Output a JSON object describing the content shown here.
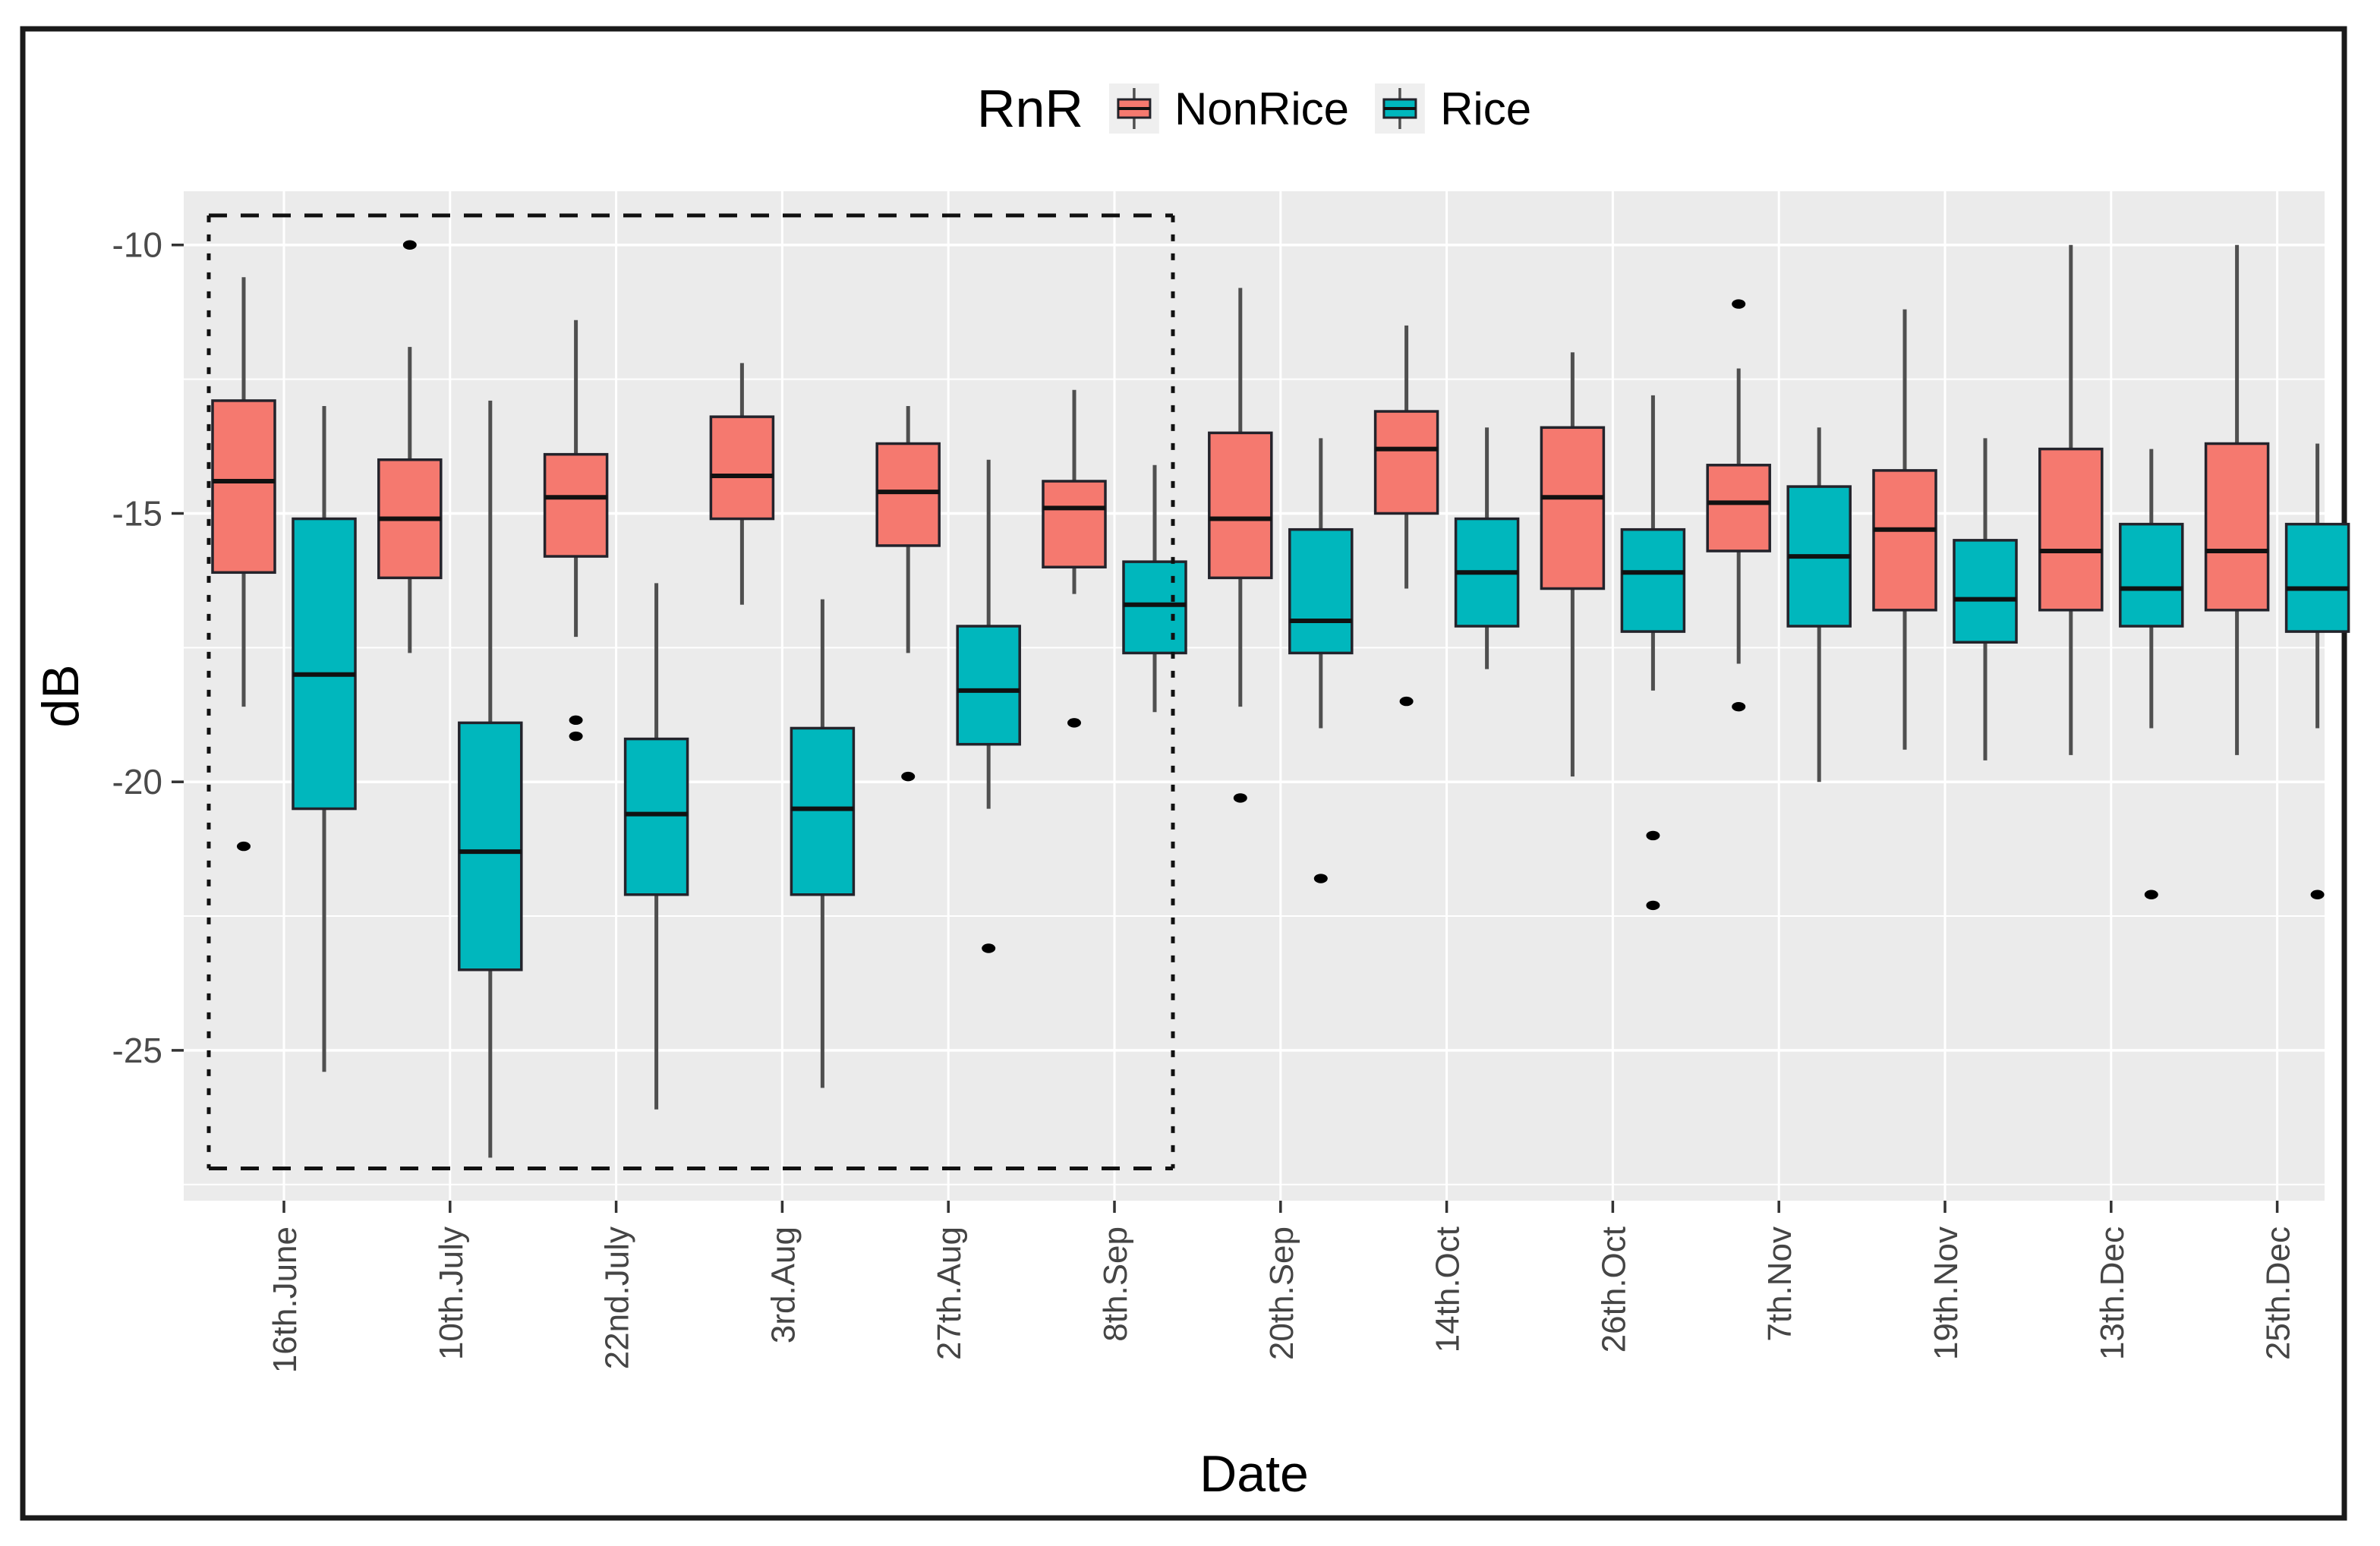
{
  "legend": {
    "title": "RnR",
    "entries": [
      {
        "label": "NonRice",
        "color": "#F5796F"
      },
      {
        "label": "Rice",
        "color": "#00B7BD"
      }
    ]
  },
  "chart_data": {
    "type": "boxplot",
    "title": "",
    "xlabel": "Date",
    "ylabel": "dB",
    "categories": [
      "16th.June",
      "10th.July",
      "22nd.July",
      "3rd.Aug",
      "27th.Aug",
      "8th.Sep",
      "20th.Sep",
      "14th.Oct",
      "26th.Oct",
      "7th.Nov",
      "19th.Nov",
      "13th.Dec",
      "25th.Dec"
    ],
    "y_ticks": [
      -10,
      -15,
      -20,
      -25
    ],
    "y_tick_labels": [
      "-10",
      "-15",
      "-20",
      "-25"
    ],
    "ylim": [
      -27.8,
      -9.0
    ],
    "legend_position": "top",
    "grid": true,
    "series": [
      {
        "name": "NonRice",
        "color": "#F5796F",
        "boxes": [
          {
            "whisker_low": -18.6,
            "q1": -16.1,
            "median": -14.4,
            "q3": -12.9,
            "whisker_high": -10.6,
            "outliers": [
              -21.2
            ]
          },
          {
            "whisker_low": -17.6,
            "q1": -16.2,
            "median": -15.1,
            "q3": -14.0,
            "whisker_high": -11.9,
            "outliers": [
              -10.0
            ]
          },
          {
            "whisker_low": -17.3,
            "q1": -15.8,
            "median": -14.7,
            "q3": -13.9,
            "whisker_high": -11.4,
            "outliers": [
              -18.85,
              -19.15
            ]
          },
          {
            "whisker_low": -16.7,
            "q1": -15.1,
            "median": -14.3,
            "q3": -13.2,
            "whisker_high": -12.2,
            "outliers": []
          },
          {
            "whisker_low": -17.6,
            "q1": -15.6,
            "median": -14.6,
            "q3": -13.7,
            "whisker_high": -13.0,
            "outliers": [
              -19.9
            ]
          },
          {
            "whisker_low": -16.5,
            "q1": -16.0,
            "median": -14.9,
            "q3": -14.4,
            "whisker_high": -12.7,
            "outliers": [
              -18.9
            ]
          },
          {
            "whisker_low": -18.6,
            "q1": -16.2,
            "median": -15.1,
            "q3": -13.5,
            "whisker_high": -10.8,
            "outliers": [
              -20.3
            ]
          },
          {
            "whisker_low": -16.4,
            "q1": -15.0,
            "median": -13.8,
            "q3": -13.1,
            "whisker_high": -11.5,
            "outliers": [
              -18.5
            ]
          },
          {
            "whisker_low": -19.9,
            "q1": -16.4,
            "median": -14.7,
            "q3": -13.4,
            "whisker_high": -12.0,
            "outliers": []
          },
          {
            "whisker_low": -17.8,
            "q1": -15.7,
            "median": -14.8,
            "q3": -14.1,
            "whisker_high": -12.3,
            "outliers": [
              -11.1,
              -18.6
            ]
          },
          {
            "whisker_low": -19.4,
            "q1": -16.8,
            "median": -15.3,
            "q3": -14.2,
            "whisker_high": -11.2,
            "outliers": []
          },
          {
            "whisker_low": -19.5,
            "q1": -16.8,
            "median": -15.7,
            "q3": -13.8,
            "whisker_high": -10.0,
            "outliers": []
          },
          {
            "whisker_low": -19.5,
            "q1": -16.8,
            "median": -15.7,
            "q3": -13.7,
            "whisker_high": -10.0,
            "outliers": []
          }
        ]
      },
      {
        "name": "Rice",
        "color": "#00B7BD",
        "boxes": [
          {
            "whisker_low": -25.4,
            "q1": -20.5,
            "median": -18.0,
            "q3": -15.1,
            "whisker_high": -13.0,
            "outliers": []
          },
          {
            "whisker_low": -27.0,
            "q1": -23.5,
            "median": -21.3,
            "q3": -18.9,
            "whisker_high": -12.9,
            "outliers": []
          },
          {
            "whisker_low": -26.1,
            "q1": -22.1,
            "median": -20.6,
            "q3": -19.2,
            "whisker_high": -16.3,
            "outliers": []
          },
          {
            "whisker_low": -25.7,
            "q1": -22.1,
            "median": -20.5,
            "q3": -19.0,
            "whisker_high": -16.6,
            "outliers": []
          },
          {
            "whisker_low": -20.5,
            "q1": -19.3,
            "median": -18.3,
            "q3": -17.1,
            "whisker_high": -14.0,
            "outliers": [
              -23.1
            ]
          },
          {
            "whisker_low": -18.7,
            "q1": -17.6,
            "median": -16.7,
            "q3": -15.9,
            "whisker_high": -14.1,
            "outliers": []
          },
          {
            "whisker_low": -19.0,
            "q1": -17.6,
            "median": -17.0,
            "q3": -15.3,
            "whisker_high": -13.6,
            "outliers": [
              -21.8
            ]
          },
          {
            "whisker_low": -17.9,
            "q1": -17.1,
            "median": -16.1,
            "q3": -15.1,
            "whisker_high": -13.4,
            "outliers": []
          },
          {
            "whisker_low": -18.3,
            "q1": -17.2,
            "median": -16.1,
            "q3": -15.3,
            "whisker_high": -12.8,
            "outliers": [
              -21.0,
              -22.3
            ]
          },
          {
            "whisker_low": -20.0,
            "q1": -17.1,
            "median": -15.8,
            "q3": -14.5,
            "whisker_high": -13.4,
            "outliers": []
          },
          {
            "whisker_low": -19.6,
            "q1": -17.4,
            "median": -16.6,
            "q3": -15.5,
            "whisker_high": -13.6,
            "outliers": []
          },
          {
            "whisker_low": -19.0,
            "q1": -17.1,
            "median": -16.4,
            "q3": -15.2,
            "whisker_high": -13.8,
            "outliers": [
              -22.1
            ]
          },
          {
            "whisker_low": -19.0,
            "q1": -17.2,
            "median": -16.4,
            "q3": -15.2,
            "whisker_high": -13.7,
            "outliers": [
              -22.1
            ]
          }
        ]
      }
    ],
    "annotation_box": {
      "from_category": "16th.June",
      "to_category": "8th.Sep",
      "y_range": [
        -27.2,
        -9.45
      ],
      "style": "dashed"
    }
  },
  "colors": {
    "panel_bg": "#EBEBEB",
    "grid": "#FFFFFF",
    "box_border": "#23232B",
    "median": "#111111",
    "whisker": "#4F4F4F",
    "outlier": "#000000",
    "tick": "#333333",
    "tick_label": "#4A4A4A",
    "legend_key_bg": "#EFEFEF",
    "annotation": "#111111",
    "figure_border": "#1A1A1A"
  }
}
